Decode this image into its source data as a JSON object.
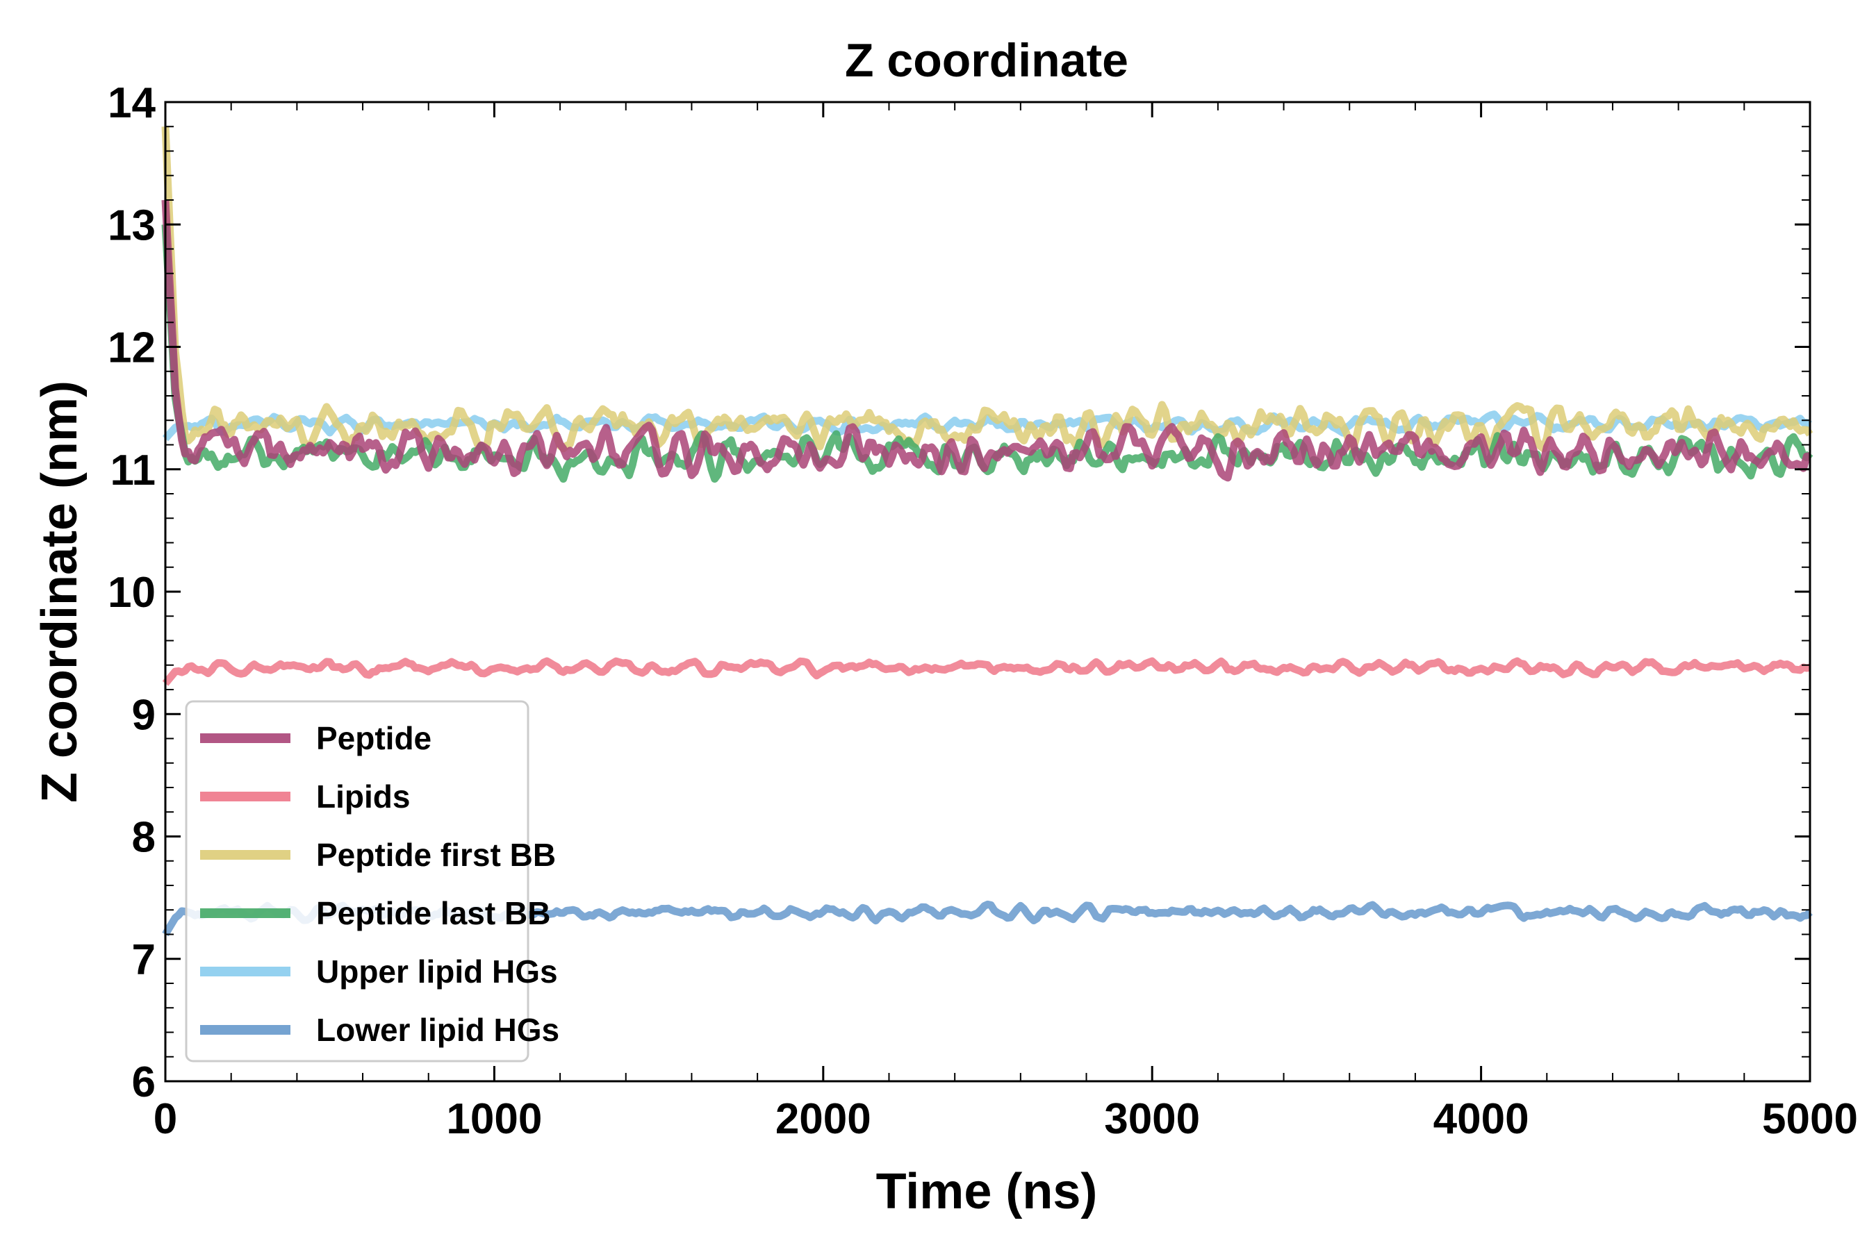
{
  "chart_data": {
    "type": "line",
    "title": "Z coordinate",
    "xlabel": "Time (ns)",
    "ylabel": "Z coordinate (nm)",
    "xlim": [
      0,
      5000
    ],
    "ylim": [
      6,
      14
    ],
    "xticks": [
      0,
      1000,
      2000,
      3000,
      4000,
      5000
    ],
    "yticks": [
      6,
      7,
      8,
      9,
      10,
      11,
      12,
      13,
      14
    ],
    "xtick_labels": [
      "0",
      "1000",
      "2000",
      "3000",
      "4000",
      "5000"
    ],
    "ytick_labels": [
      "6",
      "7",
      "8",
      "9",
      "10",
      "11",
      "12",
      "13",
      "14"
    ],
    "legend_position": "lower-left",
    "series": [
      {
        "name": "Upper lipid HGs",
        "color": "#88ccee",
        "start": 11.25,
        "mean": 11.37,
        "noise": 0.035,
        "seed": 5
      },
      {
        "name": "Peptide first BB",
        "color": "#ddcc77",
        "start": 13.8,
        "mean": 11.35,
        "noise": 0.09,
        "seed": 3
      },
      {
        "name": "Peptide last BB",
        "color": "#44aa66",
        "start": 13.0,
        "mean": 11.12,
        "noise": 0.09,
        "seed": 4
      },
      {
        "name": "Peptide",
        "color": "#aa4477",
        "start": 13.2,
        "mean": 11.15,
        "noise": 0.1,
        "seed": 1
      },
      {
        "name": "Lipids",
        "color": "#ee7788",
        "start": 9.25,
        "mean": 9.38,
        "noise": 0.03,
        "seed": 2
      },
      {
        "name": "Lower lipid HGs",
        "color": "#6699cc",
        "start": 7.2,
        "mean": 7.38,
        "noise": 0.03,
        "seed": 6
      }
    ],
    "legend_order": [
      "Peptide",
      "Lipids",
      "Peptide first BB",
      "Peptide last BB",
      "Upper lipid HGs",
      "Lower lipid HGs"
    ]
  }
}
